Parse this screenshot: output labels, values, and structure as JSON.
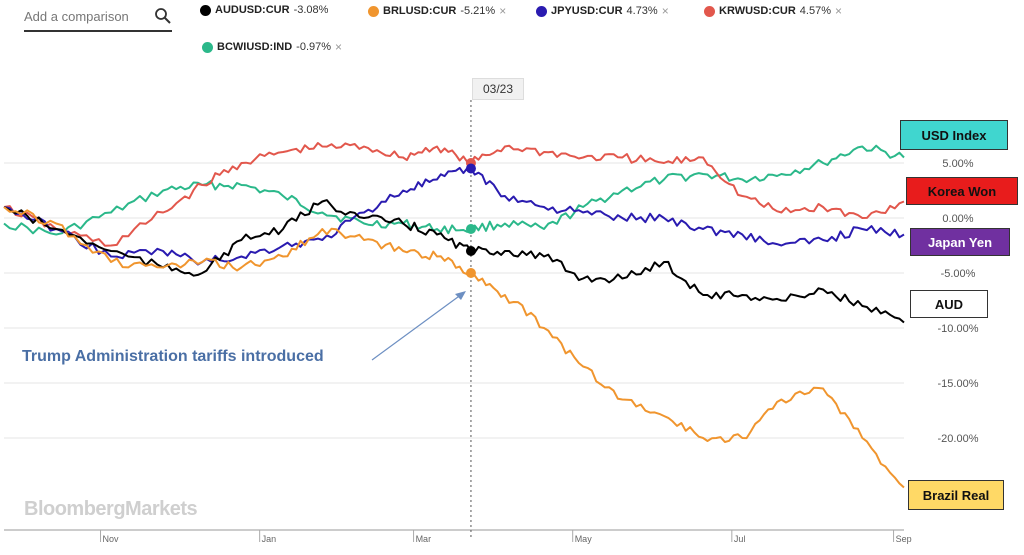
{
  "toolbar": {
    "search_placeholder": "Add a comparison",
    "chips": [
      {
        "symbol": "AUDUSD:CUR",
        "change": "-3.08%",
        "color": "#000000",
        "closable": false
      },
      {
        "symbol": "BRLUSD:CUR",
        "change": "-5.21%",
        "color": "#f0952e",
        "closable": true
      },
      {
        "symbol": "JPYUSD:CUR",
        "change": "4.73%",
        "color": "#2a1bb0",
        "closable": true
      },
      {
        "symbol": "KRWUSD:CUR",
        "change": "4.57%",
        "color": "#e2574c",
        "closable": true
      },
      {
        "symbol": "BCWIUSD:IND",
        "change": "-0.97%",
        "color": "#2bb88a",
        "closable": true
      }
    ],
    "close_glyph": "×"
  },
  "crosshair_date": "03/23",
  "annotation": "Trump  Administration tariffs introduced",
  "logo": "BloombergMarkets",
  "legend_boxes": [
    {
      "id": "usd",
      "text": "USD Index",
      "bg": "#40d6cf",
      "color": "#111111"
    },
    {
      "id": "krw",
      "text": "Korea Won",
      "bg": "#e81c1c",
      "color": "#111111"
    },
    {
      "id": "jpy",
      "text": "Japan Yen",
      "bg": "#7030a0",
      "color": "#ffffff"
    },
    {
      "id": "aud",
      "text": "AUD",
      "bg": "#ffffff",
      "color": "#111111"
    },
    {
      "id": "brl",
      "text": "Brazil Real",
      "bg": "#ffd966",
      "color": "#111111"
    }
  ],
  "chart_data": {
    "type": "line",
    "x_ticks": [
      "Nov",
      "Jan",
      "Mar",
      "May",
      "Jul",
      "Sep"
    ],
    "y_ticks": [
      {
        "value": 5,
        "label": "5.00%"
      },
      {
        "value": 0,
        "label": "0.00%"
      },
      {
        "value": -5,
        "label": "-5.00%"
      },
      {
        "value": -10,
        "label": "-10.00%"
      },
      {
        "value": -15,
        "label": "-15.00%"
      },
      {
        "value": -20,
        "label": "-20.00%"
      }
    ],
    "ylim": [
      -25,
      9
    ],
    "x_range": [
      "2017-09-25",
      "2018-09-05"
    ],
    "marker_date": "03/23",
    "series": [
      {
        "name": "USD Index",
        "color": "#2bb88a",
        "x": [
          "2017-09-25",
          "2017-10-15",
          "2017-11-05",
          "2017-11-25",
          "2017-12-10",
          "2017-12-25",
          "2018-01-10",
          "2018-01-25",
          "2018-02-10",
          "2018-02-25",
          "2018-03-10",
          "2018-03-23",
          "2018-04-05",
          "2018-04-20",
          "2018-05-05",
          "2018-05-20",
          "2018-06-05",
          "2018-06-20",
          "2018-07-05",
          "2018-07-20",
          "2018-08-05",
          "2018-08-20",
          "2018-09-05"
        ],
        "y": [
          -0.5,
          -1.5,
          0.5,
          2.5,
          3.0,
          3.0,
          2.0,
          0.5,
          -0.5,
          -0.5,
          -1.0,
          -1.0,
          -0.5,
          -1.0,
          1.0,
          2.5,
          3.5,
          4.0,
          3.5,
          4.0,
          5.0,
          6.5,
          5.5
        ]
      },
      {
        "name": "Korea Won",
        "color": "#e2574c",
        "x": [
          "2017-09-25",
          "2017-10-15",
          "2017-11-05",
          "2017-11-25",
          "2017-12-10",
          "2017-12-25",
          "2018-01-10",
          "2018-01-25",
          "2018-02-10",
          "2018-02-25",
          "2018-03-10",
          "2018-03-23",
          "2018-04-05",
          "2018-04-20",
          "2018-05-05",
          "2018-05-20",
          "2018-06-05",
          "2018-06-20",
          "2018-07-05",
          "2018-07-20",
          "2018-08-05",
          "2018-08-20",
          "2018-09-05"
        ],
        "y": [
          1.0,
          -1.0,
          -2.5,
          0.5,
          3.0,
          5.0,
          6.0,
          6.5,
          6.5,
          5.5,
          6.5,
          5.0,
          6.5,
          6.0,
          5.5,
          5.5,
          5.0,
          5.5,
          2.0,
          0.5,
          1.0,
          0.0,
          1.5
        ]
      },
      {
        "name": "Japan Yen",
        "color": "#2a1bb0",
        "x": [
          "2017-09-25",
          "2017-10-15",
          "2017-11-05",
          "2017-11-25",
          "2017-12-10",
          "2017-12-25",
          "2018-01-10",
          "2018-01-25",
          "2018-02-10",
          "2018-02-25",
          "2018-03-10",
          "2018-03-23",
          "2018-04-05",
          "2018-04-20",
          "2018-05-05",
          "2018-05-20",
          "2018-06-05",
          "2018-06-20",
          "2018-07-05",
          "2018-07-20",
          "2018-08-05",
          "2018-08-20",
          "2018-09-05"
        ],
        "y": [
          1.0,
          -1.0,
          -3.5,
          -3.0,
          -4.0,
          -3.5,
          -2.5,
          -2.0,
          0.5,
          2.5,
          3.5,
          4.5,
          2.0,
          1.0,
          0.5,
          0.0,
          0.0,
          -1.0,
          -1.5,
          -2.5,
          -2.0,
          -1.0,
          -1.5
        ]
      },
      {
        "name": "AUD",
        "color": "#000000",
        "x": [
          "2017-09-25",
          "2017-10-15",
          "2017-11-05",
          "2017-11-25",
          "2017-12-10",
          "2017-12-25",
          "2018-01-10",
          "2018-01-25",
          "2018-02-10",
          "2018-02-25",
          "2018-03-10",
          "2018-03-23",
          "2018-04-05",
          "2018-04-20",
          "2018-05-05",
          "2018-05-20",
          "2018-06-05",
          "2018-06-20",
          "2018-07-05",
          "2018-07-20",
          "2018-08-05",
          "2018-08-20",
          "2018-09-05"
        ],
        "y": [
          1.0,
          -1.0,
          -3.0,
          -4.5,
          -5.0,
          -2.0,
          -1.0,
          1.5,
          0.0,
          -0.5,
          -1.5,
          -3.0,
          -3.0,
          -3.5,
          -5.5,
          -5.5,
          -4.0,
          -7.0,
          -7.0,
          -7.5,
          -6.5,
          -8.0,
          -9.5
        ]
      },
      {
        "name": "Brazil Real",
        "color": "#f0952e",
        "x": [
          "2017-09-25",
          "2017-10-15",
          "2017-11-05",
          "2017-11-25",
          "2017-12-10",
          "2017-12-25",
          "2018-01-10",
          "2018-01-25",
          "2018-02-10",
          "2018-02-25",
          "2018-03-10",
          "2018-03-23",
          "2018-04-05",
          "2018-04-20",
          "2018-05-05",
          "2018-05-20",
          "2018-06-05",
          "2018-06-20",
          "2018-07-05",
          "2018-07-20",
          "2018-08-05",
          "2018-08-20",
          "2018-09-05"
        ],
        "y": [
          1.0,
          -0.5,
          -4.0,
          -4.5,
          -4.0,
          -4.5,
          -3.5,
          -1.0,
          -2.0,
          -3.0,
          -3.5,
          -5.0,
          -7.0,
          -10.0,
          -13.5,
          -16.5,
          -18.0,
          -20.0,
          -20.0,
          -16.5,
          -15.5,
          -20.0,
          -24.5
        ]
      }
    ]
  }
}
